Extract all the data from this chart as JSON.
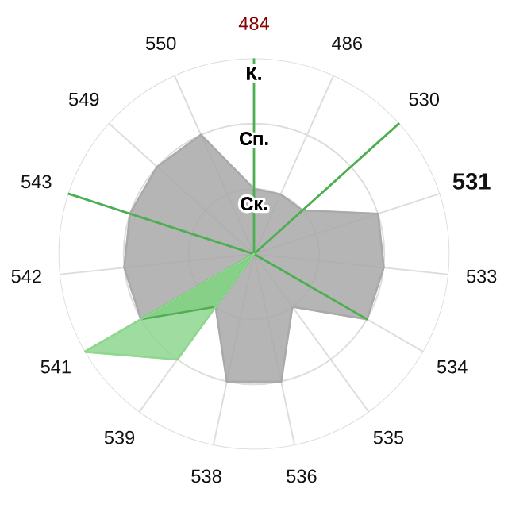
{
  "chart_data": {
    "type": "radar",
    "categories": [
      "484",
      "486",
      "530",
      "531",
      "533",
      "534",
      "535",
      "536",
      "538",
      "539",
      "541",
      "542",
      "543",
      "549",
      "550"
    ],
    "ylim": [
      0,
      3
    ],
    "yticks": [
      {
        "value": 1,
        "label": "Ск."
      },
      {
        "value": 2,
        "label": "Сп."
      },
      {
        "value": 3,
        "label": "К."
      }
    ],
    "grid": true,
    "series": [
      {
        "color": "#a9a9a9",
        "values": [
          1,
          1,
          1,
          2,
          2,
          2,
          1,
          2,
          2,
          1,
          2,
          2,
          2,
          2,
          2
        ]
      },
      {
        "color": "#4caf50",
        "values": [
          3,
          0,
          3,
          0,
          0,
          2,
          0,
          0,
          0,
          1,
          2,
          0,
          3,
          0,
          0
        ]
      },
      {
        "color": "#8fd68f",
        "values": [
          0,
          0,
          0,
          0,
          0,
          0,
          0,
          0,
          0,
          2,
          3,
          0,
          0,
          0,
          0
        ]
      }
    ]
  }
}
